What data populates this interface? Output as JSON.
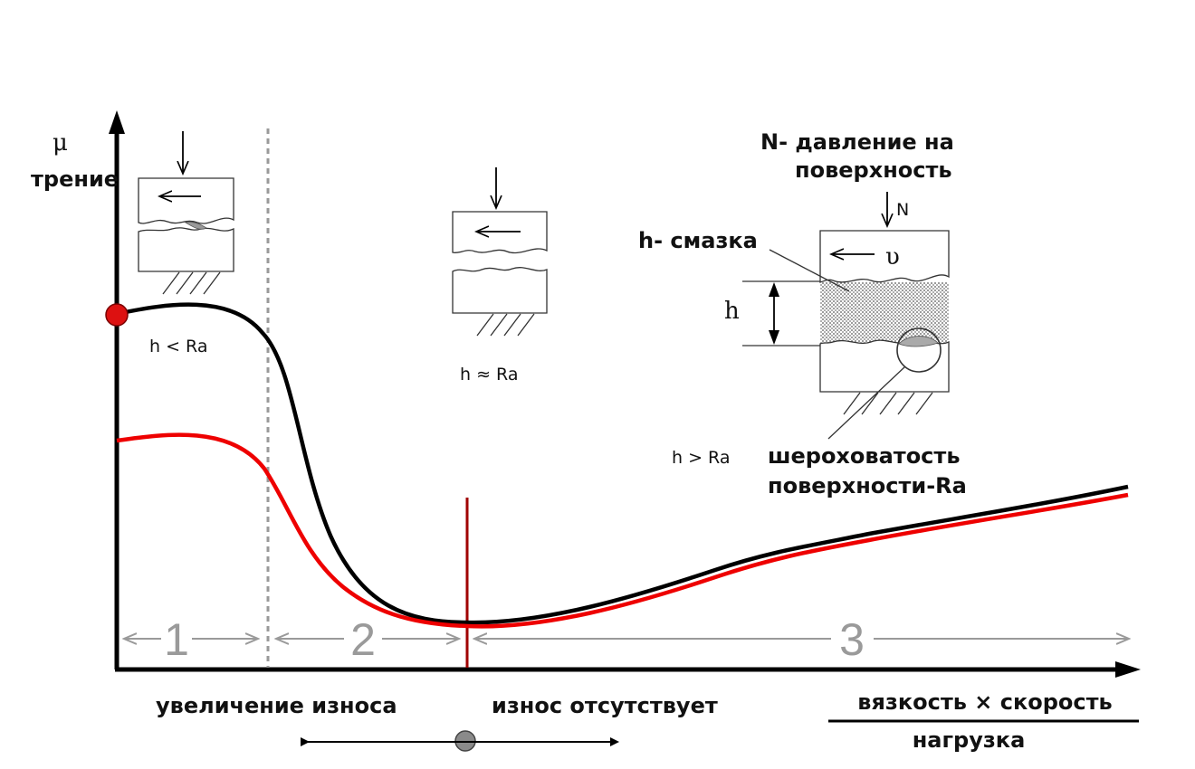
{
  "axis": {
    "y_symbol": "μ",
    "y_label": "трение",
    "x_numerator": "вязкость × скорость",
    "x_denominator": "нагрузка"
  },
  "zones": [
    {
      "number": "1"
    },
    {
      "number": "2"
    },
    {
      "number": "3"
    }
  ],
  "regime_labels": {
    "boundary": "h < Ra",
    "mixed": "h ≈ Ra",
    "hydrodynamic": "h > Ra"
  },
  "bottom_labels": {
    "wear_increase": "увеличение износа",
    "no_wear": "износ отсутствует"
  },
  "legend": {
    "pressure": "N- давление на поверхность",
    "pressure_line1": "N- давление на",
    "pressure_line2": "поверхность",
    "lubricant": "h- смазка",
    "roughness_line1": "шероховатость",
    "roughness_line2": "поверхности-Ra",
    "force_symbol": "N",
    "velocity_symbol": "υ",
    "thickness_symbol": "h"
  },
  "colors": {
    "curve_black": "#000000",
    "curve_red": "#ee0000",
    "divider_red": "#a00000",
    "divider_dashed": "#999999",
    "zone_arrows": "#9a9a9a",
    "marker_red": "#dd1111",
    "marker_grey": "#888888"
  }
}
